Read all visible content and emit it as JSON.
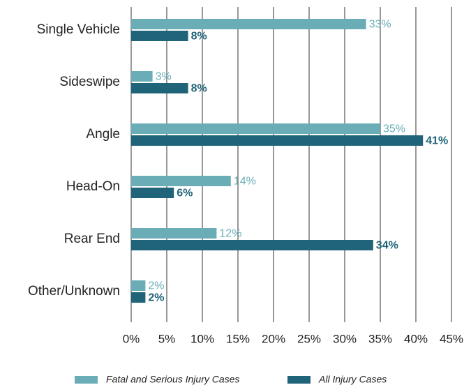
{
  "chart_data": {
    "type": "bar",
    "orientation": "horizontal",
    "categories": [
      "Single Vehicle",
      "Sideswipe",
      "Angle",
      "Head-On",
      "Rear End",
      "Other/Unknown"
    ],
    "series": [
      {
        "name": "Fatal and Serious Injury Cases",
        "color": "#6aadb7",
        "values": [
          33,
          3,
          35,
          14,
          12,
          2
        ],
        "value_labels": [
          "33%",
          "3%",
          "35%",
          "14%",
          "12%",
          "2%"
        ]
      },
      {
        "name": "All Injury Cases",
        "color": "#1f6478",
        "values": [
          8,
          8,
          41,
          6,
          34,
          2
        ],
        "value_labels": [
          "8%",
          "8%",
          "41%",
          "6%",
          "34%",
          "2%"
        ]
      }
    ],
    "xlim": [
      0,
      45
    ],
    "xticks": [
      {
        "value": 0,
        "label": "0%"
      },
      {
        "value": 5,
        "label": "5%"
      },
      {
        "value": 10,
        "label": "10%"
      },
      {
        "value": 15,
        "label": "15%"
      },
      {
        "value": 20,
        "label": "20%"
      },
      {
        "value": 25,
        "label": "25%"
      },
      {
        "value": 30,
        "label": "30%"
      },
      {
        "value": 35,
        "label": "35%"
      },
      {
        "value": 40,
        "label": "40%"
      },
      {
        "value": 45,
        "label": "45%"
      }
    ],
    "grid": true,
    "legend": "bottom"
  }
}
